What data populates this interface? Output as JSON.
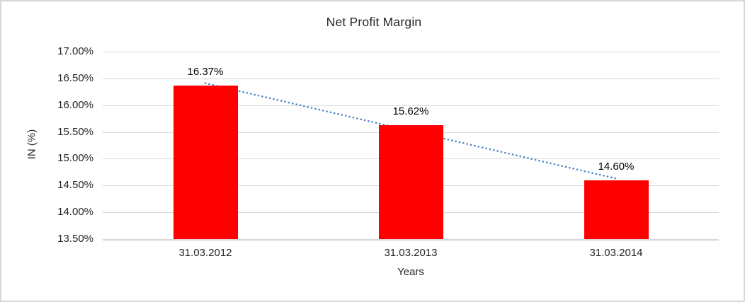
{
  "chart": {
    "title": "Net Profit Margin",
    "y_axis_title": "IN (%)",
    "x_axis_title": "Years",
    "colors": {
      "bar": "#ff0000",
      "trendline": "#4d87c7",
      "gridline": "#d9d9d9",
      "axis_line": "#c9c9c9",
      "border": "#d7d7d7",
      "text": "#262626"
    }
  },
  "chart_data": {
    "type": "bar",
    "title": "Net Profit Margin",
    "xlabel": "Years",
    "ylabel": "IN (%)",
    "categories": [
      "31.03.2012",
      "31.03.2013",
      "31.03.2014"
    ],
    "values": [
      16.37,
      15.62,
      14.6
    ],
    "data_labels": [
      "16.37%",
      "15.62%",
      "14.60%"
    ],
    "ylim": [
      13.5,
      17.0
    ],
    "ytick_step": 0.5,
    "ytick_labels": [
      "17.00%",
      "16.50%",
      "16.00%",
      "15.50%",
      "15.00%",
      "14.50%",
      "14.00%",
      "13.50%"
    ],
    "grid": true,
    "legend": false,
    "trendline": {
      "style": "dotted",
      "start_value": 16.41,
      "end_value": 14.63
    }
  }
}
